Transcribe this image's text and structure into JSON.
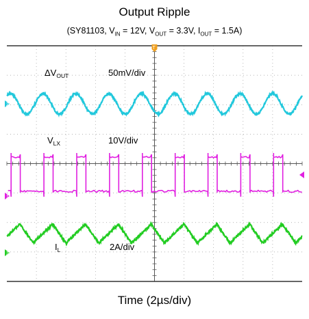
{
  "chart_data": {
    "type": "line",
    "title": "Output Ripple",
    "subtitle": {
      "chip": "SY81103",
      "vin": "12V",
      "vout": "3.3V",
      "iout": "1.5A"
    },
    "xlabel": "Time (2µs/div)",
    "grid": true,
    "series": [
      {
        "name": "ΔV_OUT",
        "label_main": "ΔV",
        "label_sub": "OUT",
        "scale": "50mV/div",
        "marker": "2",
        "color": "#22c8dc",
        "waveform": "sine",
        "cycles_per_screen": 9
      },
      {
        "name": "V_LX",
        "label_main": "V",
        "label_sub": "LX",
        "scale": "10V/div",
        "marker": "1",
        "color": "#e020e0",
        "waveform": "square",
        "cycles_per_screen": 9,
        "duty": 0.28
      },
      {
        "name": "I_L",
        "label_main": "I",
        "label_sub": "L",
        "scale": "2A/div",
        "marker": "3",
        "color": "#22cc22",
        "waveform": "triangle",
        "cycles_per_screen": 9
      }
    ],
    "trigger_marker": "T"
  }
}
